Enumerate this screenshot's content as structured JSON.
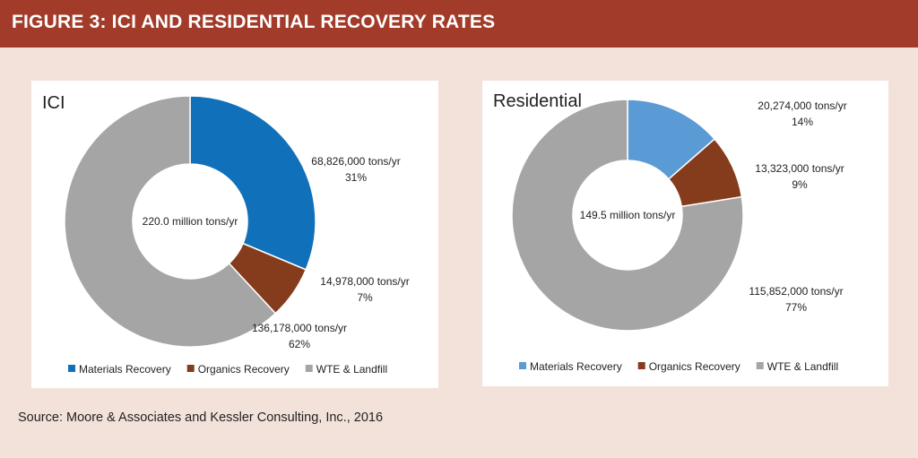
{
  "header": {
    "title": "FIGURE 3:  ICI AND RESIDENTIAL RECOVERY RATES"
  },
  "source": "Source: Moore & Associates and Kessler Consulting, Inc., 2016",
  "colors": {
    "header_bg": "#a23b2a",
    "page_bg": "#f3e2da",
    "materials_ici": "#1170ba",
    "materials_res": "#5b9bd5",
    "organics": "#843c1c",
    "landfill": "#a5a5a5"
  },
  "chart_data": [
    {
      "type": "pie",
      "variant": "donut",
      "title": "ICI",
      "center_label": "220.0  million tons/yr",
      "legend_position": "bottom",
      "slices": [
        {
          "name": "Materials Recovery",
          "value": 68826000,
          "value_label": "68,826,000  tons/yr",
          "percent_label": "31%",
          "color": "#1170ba"
        },
        {
          "name": "Organics Recovery",
          "value": 14978000,
          "value_label": "14,978,000  tons/yr",
          "percent_label": "7%",
          "color": "#843c1c"
        },
        {
          "name": "WTE & Landfill",
          "value": 136178000,
          "value_label": "136,178,000  tons/yr",
          "percent_label": "62%",
          "color": "#a5a5a5"
        }
      ]
    },
    {
      "type": "pie",
      "variant": "donut",
      "title": "Residential",
      "center_label": "149.5  million tons/yr",
      "legend_position": "bottom",
      "slices": [
        {
          "name": "Materials Recovery",
          "value": 20274000,
          "value_label": "20,274,000  tons/yr",
          "percent_label": "14%",
          "color": "#5b9bd5"
        },
        {
          "name": "Organics Recovery",
          "value": 13323000,
          "value_label": "13,323,000  tons/yr",
          "percent_label": "9%",
          "color": "#843c1c"
        },
        {
          "name": "WTE & Landfill",
          "value": 115852000,
          "value_label": "115,852,000  tons/yr",
          "percent_label": "77%",
          "color": "#a5a5a5"
        }
      ]
    }
  ]
}
